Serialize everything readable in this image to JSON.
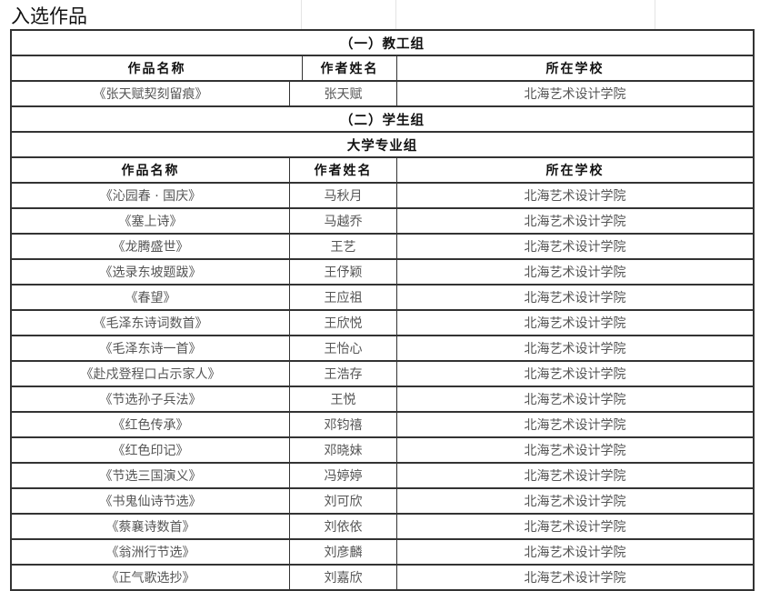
{
  "sheet_title": "入选作品",
  "columns": [
    "作品名称",
    "作者姓名",
    "所在学校"
  ],
  "staff_group": {
    "label": "（一）教工组",
    "rows": [
      [
        "《张天赋契刻留痕》",
        "张天赋",
        "北海艺术设计学院"
      ]
    ]
  },
  "student_group": {
    "label": "（二）学生组",
    "subgroup": "大学专业组",
    "rows": [
      [
        "《沁园春 · 国庆》",
        "马秋月",
        "北海艺术设计学院"
      ],
      [
        "《塞上诗》",
        "马越乔",
        "北海艺术设计学院"
      ],
      [
        "《龙腾盛世》",
        "王艺",
        "北海艺术设计学院"
      ],
      [
        "《选录东坡题跋》",
        "王伃颖",
        "北海艺术设计学院"
      ],
      [
        "《春望》",
        "王应祖",
        "北海艺术设计学院"
      ],
      [
        "《毛泽东诗词数首》",
        "王欣悦",
        "北海艺术设计学院"
      ],
      [
        "《毛泽东诗一首》",
        "王怡心",
        "北海艺术设计学院"
      ],
      [
        "《赴戍登程口占示家人》",
        "王浩存",
        "北海艺术设计学院"
      ],
      [
        "《节选孙子兵法》",
        "王悦",
        "北海艺术设计学院"
      ],
      [
        "《红色传承》",
        "邓钧禧",
        "北海艺术设计学院"
      ],
      [
        "《红色印记》",
        "邓晓妹",
        "北海艺术设计学院"
      ],
      [
        "《节选三国演义》",
        "冯婷婷",
        "北海艺术设计学院"
      ],
      [
        "《书鬼仙诗节选》",
        "刘可欣",
        "北海艺术设计学院"
      ],
      [
        "《蔡襄诗数首》",
        "刘依依",
        "北海艺术设计学院"
      ],
      [
        "《翁洲行节选》",
        "刘彦麟",
        "北海艺术设计学院"
      ],
      [
        "《正气歌选抄》",
        "刘嘉欣",
        "北海艺术设计学院"
      ]
    ]
  }
}
